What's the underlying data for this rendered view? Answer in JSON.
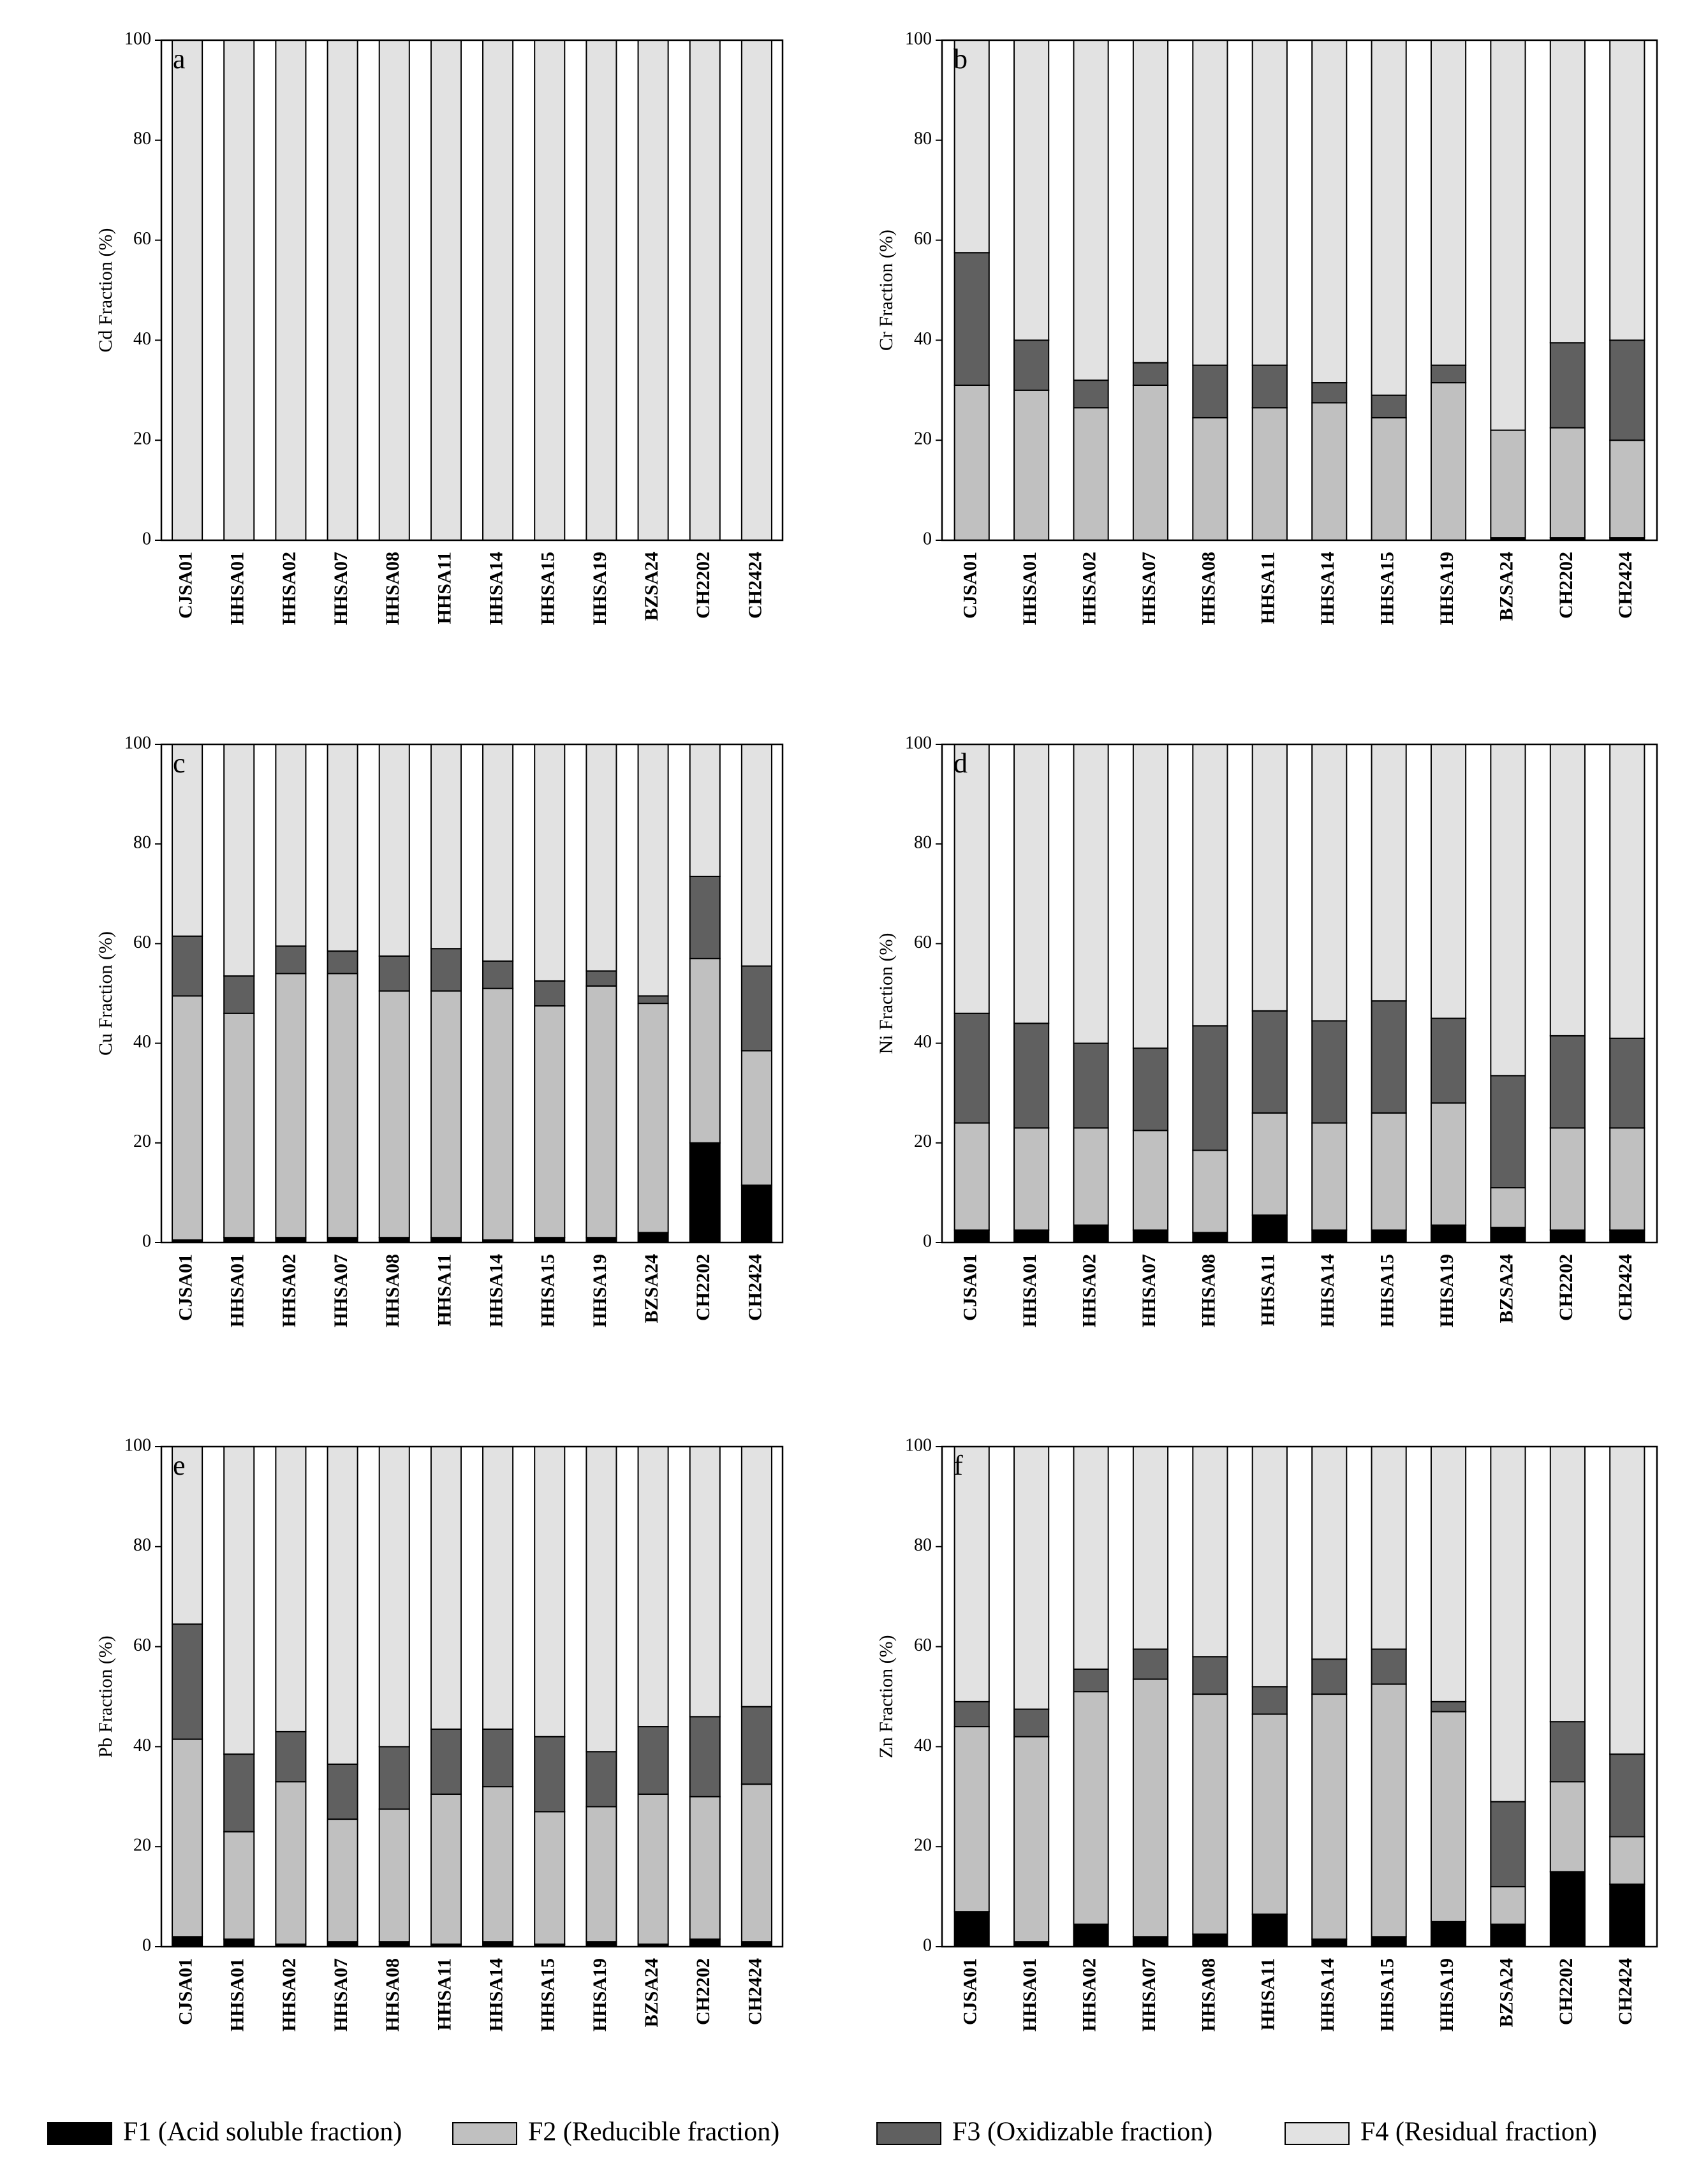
{
  "legend": [
    {
      "name": "F1 (Acid soluble fraction)",
      "color": "#000000"
    },
    {
      "name": "F2 (Reducible fraction)",
      "color": "#c0c0c0"
    },
    {
      "name": "F3 (Oxidizable fraction)",
      "color": "#606060"
    },
    {
      "name": "F4 (Residual fraction)",
      "color": "#e2e2e2"
    }
  ],
  "chart_data": [
    {
      "type": "stacked_bar",
      "panel": "a",
      "y_label": "Cd Fraction (%)",
      "ylim": [
        0,
        100
      ],
      "yticks": [
        0,
        20,
        40,
        60,
        80,
        100
      ],
      "categories": [
        "CJSA01",
        "HHSA01",
        "HHSA02",
        "HHSA07",
        "HHSA08",
        "HHSA11",
        "HHSA14",
        "HHSA15",
        "HHSA19",
        "BZSA24",
        "CH2202",
        "CH2424"
      ],
      "series": [
        {
          "values": [
            0,
            0,
            0,
            0,
            0,
            0,
            0,
            0,
            0,
            0,
            0,
            0
          ]
        },
        {
          "values": [
            0,
            0,
            0,
            0,
            0,
            0,
            0,
            0,
            0,
            0,
            0,
            0
          ]
        },
        {
          "values": [
            0,
            0,
            0,
            0,
            0,
            0,
            0,
            0,
            0,
            0,
            0,
            0
          ]
        },
        {
          "values": [
            100,
            100,
            100,
            100,
            100,
            100,
            100,
            100,
            100,
            100,
            100,
            100
          ]
        }
      ]
    },
    {
      "type": "stacked_bar",
      "panel": "b",
      "y_label": "Cr Fraction (%)",
      "ylim": [
        0,
        100
      ],
      "yticks": [
        0,
        20,
        40,
        60,
        80,
        100
      ],
      "categories": [
        "CJSA01",
        "HHSA01",
        "HHSA02",
        "HHSA07",
        "HHSA08",
        "HHSA11",
        "HHSA14",
        "HHSA15",
        "HHSA19",
        "BZSA24",
        "CH2202",
        "CH2424"
      ],
      "series": [
        {
          "values": [
            0,
            0,
            0,
            0,
            0,
            0,
            0,
            0,
            0,
            0.5,
            0.5,
            0.5
          ]
        },
        {
          "values": [
            31,
            30,
            26.5,
            31,
            24.5,
            26.5,
            27.5,
            24.5,
            31.5,
            21.5,
            22,
            19.5
          ]
        },
        {
          "values": [
            26.5,
            10,
            5.5,
            4.5,
            10.5,
            8.5,
            4,
            4.5,
            3.5,
            0,
            17,
            20
          ]
        },
        {
          "values": [
            42.5,
            60,
            68,
            64.5,
            65,
            65,
            68.5,
            71,
            65,
            78,
            60.5,
            60
          ]
        }
      ]
    },
    {
      "type": "stacked_bar",
      "panel": "c",
      "y_label": "Cu Fraction (%)",
      "ylim": [
        0,
        100
      ],
      "yticks": [
        0,
        20,
        40,
        60,
        80,
        100
      ],
      "categories": [
        "CJSA01",
        "HHSA01",
        "HHSA02",
        "HHSA07",
        "HHSA08",
        "HHSA11",
        "HHSA14",
        "HHSA15",
        "HHSA19",
        "BZSA24",
        "CH2202",
        "CH2424"
      ],
      "series": [
        {
          "values": [
            0.5,
            1,
            1,
            1,
            1,
            1,
            0.5,
            1,
            1,
            2,
            20,
            11.5
          ]
        },
        {
          "values": [
            49,
            45,
            53,
            53,
            49.5,
            49.5,
            50.5,
            46.5,
            50.5,
            46,
            37,
            27
          ]
        },
        {
          "values": [
            12,
            7.5,
            5.5,
            4.5,
            7,
            8.5,
            5.5,
            5,
            3,
            1.5,
            16.5,
            17
          ]
        },
        {
          "values": [
            38.5,
            46.5,
            40.5,
            41.5,
            42.5,
            41,
            43.5,
            47.5,
            45.5,
            50.5,
            26.5,
            44.5
          ]
        }
      ]
    },
    {
      "type": "stacked_bar",
      "panel": "d",
      "y_label": "Ni Fraction (%)",
      "ylim": [
        0,
        100
      ],
      "yticks": [
        0,
        20,
        40,
        60,
        80,
        100
      ],
      "categories": [
        "CJSA01",
        "HHSA01",
        "HHSA02",
        "HHSA07",
        "HHSA08",
        "HHSA11",
        "HHSA14",
        "HHSA15",
        "HHSA19",
        "BZSA24",
        "CH2202",
        "CH2424"
      ],
      "series": [
        {
          "values": [
            2.5,
            2.5,
            3.5,
            2.5,
            2,
            5.5,
            2.5,
            2.5,
            3.5,
            3,
            2.5,
            2.5
          ]
        },
        {
          "values": [
            21.5,
            20.5,
            19.5,
            20,
            16.5,
            20.5,
            21.5,
            23.5,
            24.5,
            8,
            20.5,
            20.5
          ]
        },
        {
          "values": [
            22,
            21,
            17,
            16.5,
            25,
            20.5,
            20.5,
            22.5,
            17,
            22.5,
            18.5,
            18
          ]
        },
        {
          "values": [
            54,
            56,
            60,
            61,
            56.5,
            53.5,
            55.5,
            51.5,
            55,
            66.5,
            58.5,
            59
          ]
        }
      ]
    },
    {
      "type": "stacked_bar",
      "panel": "e",
      "y_label": "Pb Fraction (%)",
      "ylim": [
        0,
        100
      ],
      "yticks": [
        0,
        20,
        40,
        60,
        80,
        100
      ],
      "categories": [
        "CJSA01",
        "HHSA01",
        "HHSA02",
        "HHSA07",
        "HHSA08",
        "HHSA11",
        "HHSA14",
        "HHSA15",
        "HHSA19",
        "BZSA24",
        "CH2202",
        "CH2424"
      ],
      "series": [
        {
          "values": [
            2,
            1.5,
            0.5,
            1,
            1,
            0.5,
            1,
            0.5,
            1,
            0.5,
            1.5,
            1
          ]
        },
        {
          "values": [
            39.5,
            21.5,
            32.5,
            24.5,
            26.5,
            30,
            31,
            26.5,
            27,
            30,
            28.5,
            31.5
          ]
        },
        {
          "values": [
            23,
            15.5,
            10,
            11,
            12.5,
            13,
            11.5,
            15,
            11,
            13.5,
            16,
            15.5
          ]
        },
        {
          "values": [
            35.5,
            61.5,
            57,
            63.5,
            60,
            56.5,
            56.5,
            58,
            61,
            56,
            54,
            52
          ]
        }
      ]
    },
    {
      "type": "stacked_bar",
      "panel": "f",
      "y_label": "Zn Fraction (%)",
      "ylim": [
        0,
        100
      ],
      "yticks": [
        0,
        20,
        40,
        60,
        80,
        100
      ],
      "categories": [
        "CJSA01",
        "HHSA01",
        "HHSA02",
        "HHSA07",
        "HHSA08",
        "HHSA11",
        "HHSA14",
        "HHSA15",
        "HHSA19",
        "BZSA24",
        "CH2202",
        "CH2424"
      ],
      "series": [
        {
          "values": [
            7,
            1,
            4.5,
            2,
            2.5,
            6.5,
            1.5,
            2,
            5,
            4.5,
            15,
            12.5
          ]
        },
        {
          "values": [
            37,
            41,
            46.5,
            51.5,
            48,
            40,
            49,
            50.5,
            42,
            7.5,
            18,
            9.5
          ]
        },
        {
          "values": [
            5,
            5.5,
            4.5,
            6,
            7.5,
            5.5,
            7,
            7,
            2,
            17,
            12,
            16.5
          ]
        },
        {
          "values": [
            51,
            52.5,
            44.5,
            40.5,
            42,
            48,
            42.5,
            40.5,
            51,
            71,
            55,
            61.5
          ]
        }
      ]
    }
  ]
}
